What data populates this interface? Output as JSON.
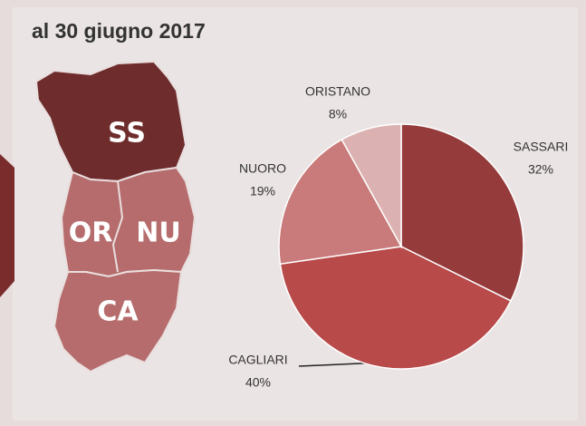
{
  "title": "al 30 giugno 2017",
  "map": {
    "labels": [
      "SS",
      "OR",
      "NU",
      "CA"
    ]
  },
  "chart_data": {
    "type": "pie",
    "categories": [
      "SASSARI",
      "CAGLIARI",
      "NUORO",
      "ORISTANO"
    ],
    "values": [
      32,
      40,
      19,
      8
    ],
    "value_labels": [
      "32%",
      "40%",
      "19%",
      "8%"
    ],
    "colors": [
      "#953b3b",
      "#b84a4a",
      "#c97a7a",
      "#dcb1b1"
    ],
    "start_angle": 0,
    "direction": "clockwise"
  }
}
